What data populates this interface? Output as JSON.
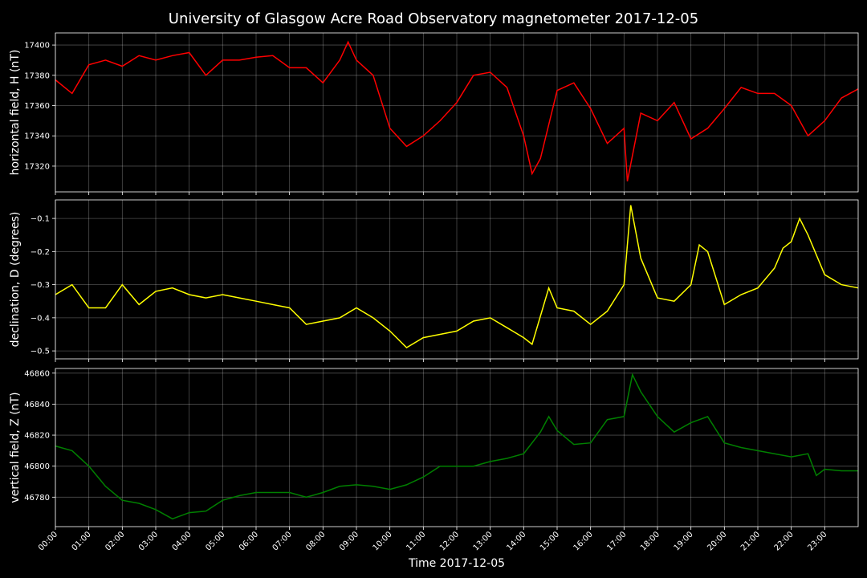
{
  "title": "University of Glasgow Acre Road Observatory magnetometer 2017-12-05",
  "x_axis": {
    "label": "Time 2017-12-05",
    "xlim": [
      0,
      24
    ],
    "xticks": [
      {
        "value": 0,
        "label": "00:00"
      },
      {
        "value": 1,
        "label": "01:00"
      },
      {
        "value": 2,
        "label": "02:00"
      },
      {
        "value": 3,
        "label": "03:00"
      },
      {
        "value": 4,
        "label": "04:00"
      },
      {
        "value": 5,
        "label": "05:00"
      },
      {
        "value": 6,
        "label": "06:00"
      },
      {
        "value": 7,
        "label": "07:00"
      },
      {
        "value": 8,
        "label": "08:00"
      },
      {
        "value": 9,
        "label": "09:00"
      },
      {
        "value": 10,
        "label": "10:00"
      },
      {
        "value": 11,
        "label": "11:00"
      },
      {
        "value": 12,
        "label": "12:00"
      },
      {
        "value": 13,
        "label": "13:00"
      },
      {
        "value": 14,
        "label": "14:00"
      },
      {
        "value": 15,
        "label": "15:00"
      },
      {
        "value": 16,
        "label": "16:00"
      },
      {
        "value": 17,
        "label": "17:00"
      },
      {
        "value": 18,
        "label": "18:00"
      },
      {
        "value": 19,
        "label": "19:00"
      },
      {
        "value": 20,
        "label": "20:00"
      },
      {
        "value": 21,
        "label": "21:00"
      },
      {
        "value": 22,
        "label": "22:00"
      },
      {
        "value": 23,
        "label": "23:00"
      }
    ]
  },
  "chart_data": [
    {
      "type": "line",
      "ylabel": "horizontal field, H (nT)",
      "color": "#ff0000",
      "grid": true,
      "ylim": [
        17303,
        17408
      ],
      "yticks": [
        17320,
        17340,
        17360,
        17380,
        17400
      ],
      "x": [
        0,
        0.5,
        1,
        1.5,
        2,
        2.5,
        3,
        3.5,
        4,
        4.5,
        5,
        5.5,
        6,
        6.5,
        7,
        7.5,
        8,
        8.5,
        8.75,
        9,
        9.5,
        10,
        10.5,
        11,
        11.5,
        12,
        12.5,
        13,
        13.5,
        14,
        14.25,
        14.5,
        15,
        15.5,
        16,
        16.5,
        17,
        17.1,
        17.5,
        18,
        18.5,
        19,
        19.5,
        20,
        20.5,
        21,
        21.5,
        22,
        22.5,
        23,
        23.5,
        24
      ],
      "values": [
        17377,
        17368,
        17387,
        17390,
        17386,
        17393,
        17390,
        17393,
        17395,
        17380,
        17390,
        17390,
        17392,
        17393,
        17385,
        17385,
        17375,
        17390,
        17402,
        17390,
        17380,
        17345,
        17333,
        17340,
        17350,
        17362,
        17380,
        17382,
        17372,
        17340,
        17315,
        17325,
        17370,
        17375,
        17358,
        17335,
        17345,
        17310,
        17355,
        17350,
        17362,
        17338,
        17345,
        17358,
        17372,
        17368,
        17368,
        17360,
        17340,
        17350,
        17365,
        17371
      ]
    },
    {
      "type": "line",
      "ylabel": "declination, D (degrees)",
      "color": "#ffff00",
      "grid": true,
      "ylim": [
        -0.524,
        -0.044
      ],
      "yticks": [
        {
          "value": -0.5,
          "label": "−0.5"
        },
        {
          "value": -0.4,
          "label": "−0.4"
        },
        {
          "value": -0.3,
          "label": "−0.3"
        },
        {
          "value": -0.2,
          "label": "−0.2"
        },
        {
          "value": -0.1,
          "label": "−0.1"
        }
      ],
      "x": [
        0,
        0.5,
        1,
        1.5,
        2,
        2.5,
        3,
        3.5,
        4,
        4.5,
        5,
        5.5,
        6,
        6.5,
        7,
        7.5,
        8,
        8.5,
        9,
        9.5,
        10,
        10.5,
        11,
        11.5,
        12,
        12.5,
        13,
        13.5,
        14,
        14.25,
        14.75,
        15,
        15.5,
        16,
        16.5,
        17,
        17.2,
        17.5,
        18,
        18.5,
        19,
        19.25,
        19.5,
        20,
        20.5,
        21,
        21.5,
        21.75,
        22,
        22.25,
        22.5,
        23,
        23.5,
        24
      ],
      "values": [
        -0.33,
        -0.3,
        -0.37,
        -0.37,
        -0.3,
        -0.36,
        -0.32,
        -0.31,
        -0.33,
        -0.34,
        -0.33,
        -0.34,
        -0.35,
        -0.36,
        -0.37,
        -0.42,
        -0.41,
        -0.4,
        -0.37,
        -0.4,
        -0.44,
        -0.49,
        -0.46,
        -0.45,
        -0.44,
        -0.41,
        -0.4,
        -0.43,
        -0.46,
        -0.48,
        -0.31,
        -0.37,
        -0.38,
        -0.42,
        -0.38,
        -0.3,
        -0.06,
        -0.22,
        -0.34,
        -0.35,
        -0.3,
        -0.18,
        -0.2,
        -0.36,
        -0.33,
        -0.31,
        -0.25,
        -0.19,
        -0.17,
        -0.1,
        -0.15,
        -0.27,
        -0.3,
        -0.31
      ]
    },
    {
      "type": "line",
      "ylabel": "vertical field, Z (nT)",
      "color": "#008000",
      "grid": true,
      "ylim": [
        46761,
        46863
      ],
      "yticks": [
        46780,
        46800,
        46820,
        46840,
        46860
      ],
      "x": [
        0,
        0.5,
        1,
        1.5,
        2,
        2.5,
        3,
        3.5,
        4,
        4.5,
        5,
        5.5,
        6,
        6.5,
        7,
        7.5,
        8,
        8.5,
        9,
        9.5,
        10,
        10.5,
        11,
        11.5,
        12,
        12.5,
        13,
        13.5,
        14,
        14.5,
        14.75,
        15,
        15.5,
        16,
        16.5,
        17,
        17.25,
        17.5,
        18,
        18.5,
        19,
        19.5,
        20,
        20.5,
        21,
        21.5,
        22,
        22.5,
        22.75,
        23,
        23.5,
        24
      ],
      "values": [
        46813,
        46810,
        46800,
        46787,
        46778,
        46776,
        46772,
        46766,
        46770,
        46771,
        46778,
        46781,
        46783,
        46783,
        46783,
        46780,
        46783,
        46787,
        46788,
        46787,
        46785,
        46788,
        46793,
        46800,
        46800,
        46800,
        46803,
        46805,
        46808,
        46822,
        46832,
        46823,
        46814,
        46815,
        46830,
        46832,
        46859,
        46848,
        46832,
        46822,
        46828,
        46832,
        46815,
        46812,
        46810,
        46808,
        46806,
        46808,
        46794,
        46798,
        46797,
        46797
      ]
    }
  ]
}
